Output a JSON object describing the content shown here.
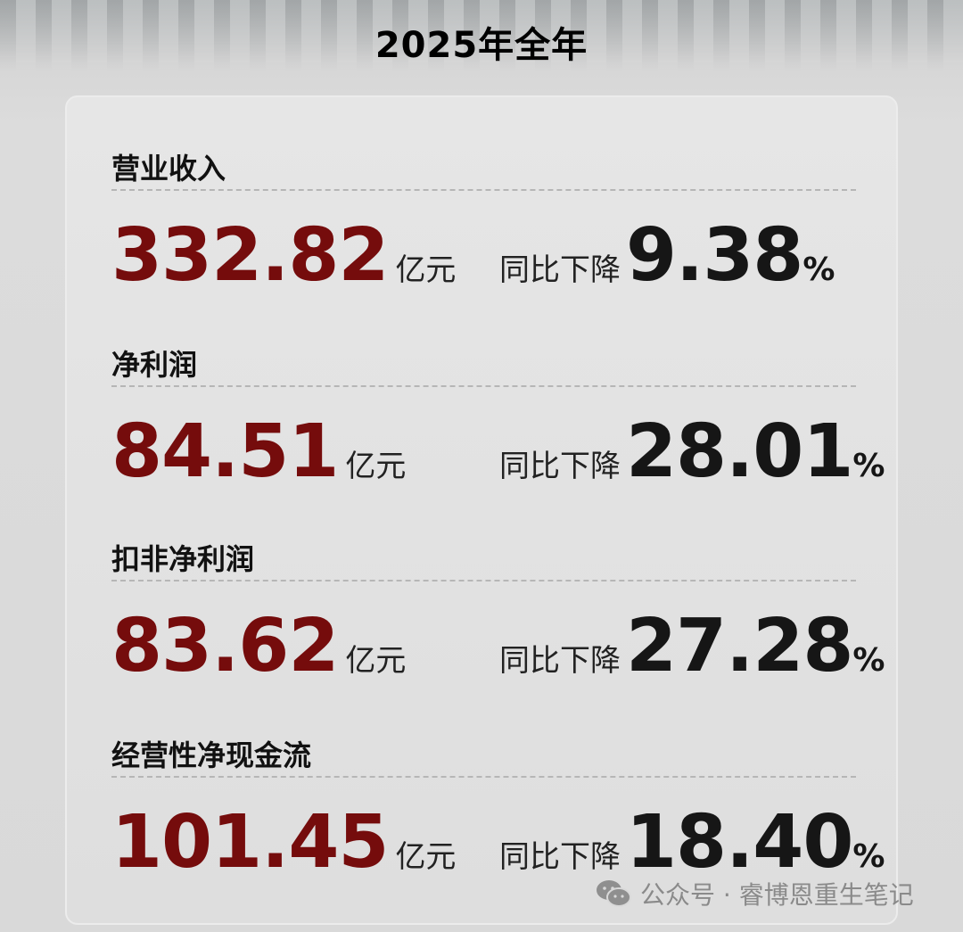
{
  "title": "2025年全年",
  "metrics": [
    {
      "label": "营业收入",
      "value": "332.82",
      "unit": "亿元",
      "change_label": "同比下降",
      "change": "9.38",
      "change_unit": "%"
    },
    {
      "label": "净利润",
      "value": "84.51",
      "unit": "亿元",
      "change_label": "同比下降",
      "change": "28.01",
      "change_unit": "%"
    },
    {
      "label": "扣非净利润",
      "value": "83.62",
      "unit": "亿元",
      "change_label": "同比下降",
      "change": "27.28",
      "change_unit": "%"
    },
    {
      "label": "经营性净现金流",
      "value": "101.45",
      "unit": "亿元",
      "change_label": "同比下降",
      "change": "18.40",
      "change_unit": "%"
    }
  ],
  "watermark": "公众号 · 睿博恩重生笔记",
  "colors": {
    "value": "#750c0c",
    "text": "#161616"
  },
  "icons": {
    "watermark": "wechat-icon"
  }
}
